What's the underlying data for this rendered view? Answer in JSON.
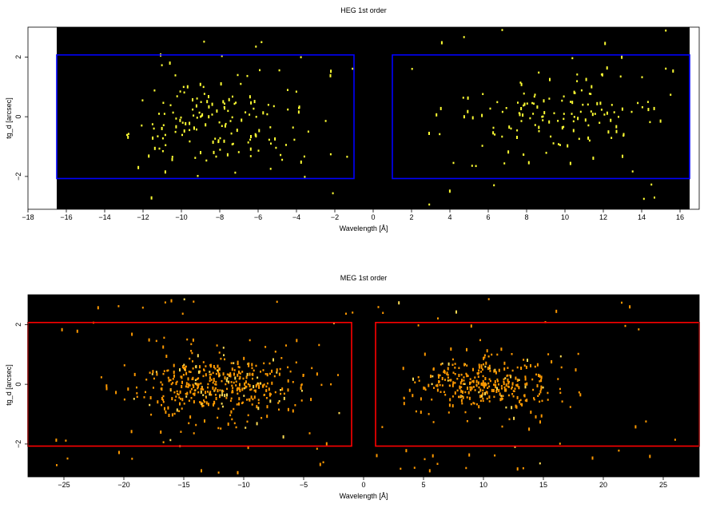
{
  "chart_data": [
    {
      "type": "scatter",
      "title": "HEG 1st order",
      "xlabel": "Wavelength [Å]",
      "ylabel": "tg_d [arcsec]",
      "xlim": [
        -18,
        17
      ],
      "ylim": [
        -3.1,
        3.0
      ],
      "data_extent_x": [
        -16.5,
        16.5
      ],
      "xticks": [
        -18,
        -16,
        -14,
        -12,
        -10,
        -8,
        -6,
        -4,
        -2,
        0,
        2,
        4,
        6,
        8,
        10,
        12,
        14,
        16
      ],
      "yticks": [
        -2,
        0,
        2
      ],
      "background_color": "#000000",
      "point_color": "#ffff33",
      "region_color": "#0000ff",
      "regions": [
        {
          "x": [
            -16.5,
            -1.0
          ],
          "y": [
            -2.07,
            2.07
          ]
        },
        {
          "x": [
            1.0,
            16.5
          ],
          "y": [
            -2.07,
            2.07
          ]
        }
      ],
      "point_sets": [
        {
          "n": 150,
          "x_range": [
            -13,
            -2
          ],
          "x_center": -8,
          "x_spread": 3.2,
          "y_spread": 0.8,
          "seed": 11
        },
        {
          "n": 130,
          "x_range": [
            2,
            16
          ],
          "x_center": 10,
          "x_spread": 3.0,
          "y_spread": 0.6,
          "seed": 23
        },
        {
          "n": 45,
          "x_range": [
            -13,
            16
          ],
          "x_center": 1,
          "x_spread": 9,
          "y_spread": 1.6,
          "seed": 37,
          "outer": true
        }
      ]
    },
    {
      "type": "scatter",
      "title": "MEG 1st order",
      "xlabel": "Wavelength [Å]",
      "ylabel": "tg_d [arcsec]",
      "xlim": [
        -28,
        28
      ],
      "ylim": [
        -3.1,
        3.0
      ],
      "data_extent_x": [
        -28,
        28
      ],
      "xticks": [
        -25,
        -20,
        -15,
        -10,
        -5,
        0,
        5,
        10,
        15,
        20,
        25
      ],
      "yticks": [
        -2,
        0,
        2
      ],
      "background_color": "#000000",
      "point_color": "#ff9900",
      "point_color_bright": "#ffdd55",
      "region_color": "#ff0000",
      "regions": [
        {
          "x": [
            -28,
            -1.0
          ],
          "y": [
            -2.07,
            2.07
          ]
        },
        {
          "x": [
            1.0,
            28
          ],
          "y": [
            -2.07,
            2.07
          ]
        }
      ],
      "point_sets": [
        {
          "n": 420,
          "x_range": [
            -22,
            -2
          ],
          "x_center": -12,
          "x_spread": 4.0,
          "y_spread": 0.55,
          "seed": 53
        },
        {
          "n": 330,
          "x_range": [
            3,
            19
          ],
          "x_center": 10,
          "x_spread": 3.5,
          "y_spread": 0.45,
          "seed": 71
        },
        {
          "n": 90,
          "x_range": [
            -26,
            26
          ],
          "x_center": 0,
          "x_spread": 13,
          "y_spread": 1.7,
          "seed": 89,
          "outer": true
        }
      ]
    }
  ]
}
